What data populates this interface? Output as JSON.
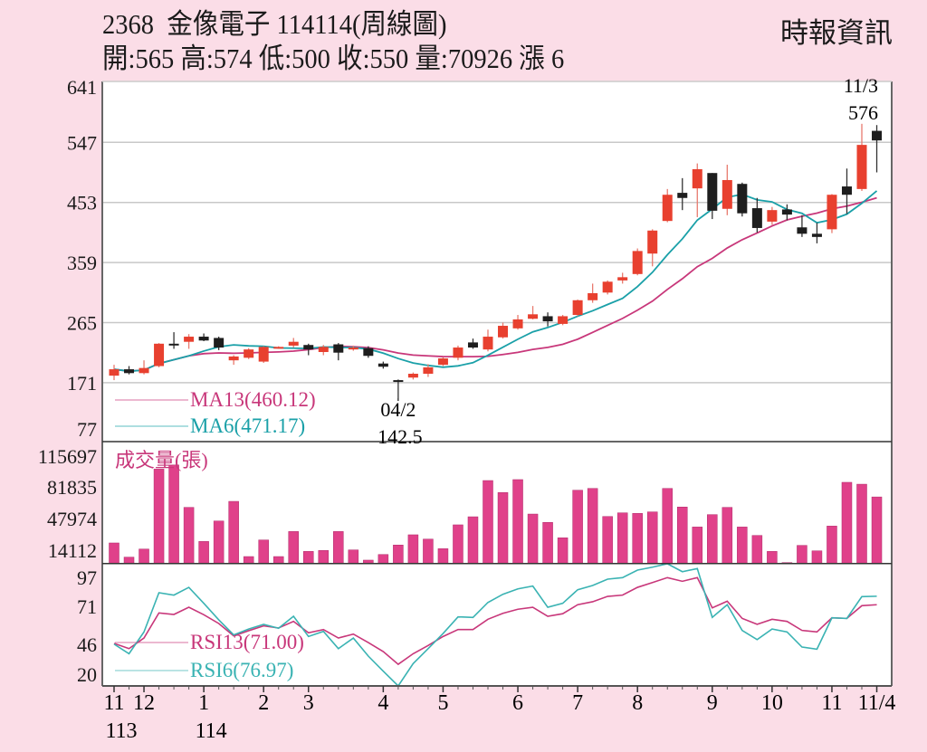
{
  "header": {
    "title": "2368  金像電子 114114(周線圖)",
    "quote": "開:565 高:574 低:500 收:550 量:70926 漲 6",
    "source": "時報資訊"
  },
  "colors": {
    "background": "#fbdde7",
    "up_candle": "#e8402f",
    "down_candle": "#1e1e1e",
    "volume": "#e0418a",
    "ma13": "#c8377a",
    "ma6": "#1aa0a8",
    "rsi13": "#c8377a",
    "rsi6": "#3ab3b3"
  },
  "chart_data": [
    {
      "type": "candlestick",
      "title": "",
      "y_ticks": [
        "641",
        "547",
        "453",
        "359",
        "265",
        "171",
        "77"
      ],
      "ylim": [
        77,
        641
      ],
      "grid": true,
      "legend": [
        {
          "label": "MA13(460.12)",
          "series": "ma13"
        },
        {
          "label": "MA6(471.17)",
          "series": "ma6"
        }
      ],
      "annotations": [
        {
          "label_date": "11/3",
          "label_value": "576",
          "index": 50
        },
        {
          "label_date": "04/2",
          "label_value": "142.5",
          "index": 19
        }
      ],
      "ohlc": [
        [
          182,
          199,
          175,
          192
        ],
        [
          192,
          197,
          184,
          186
        ],
        [
          186,
          206,
          184,
          194
        ],
        [
          197,
          233,
          195,
          232
        ],
        [
          232,
          250,
          224,
          231
        ],
        [
          235,
          247,
          224,
          243
        ],
        [
          243,
          248,
          236,
          237
        ],
        [
          241,
          243,
          222,
          226
        ],
        [
          206,
          214,
          199,
          212
        ],
        [
          210,
          225,
          208,
          223
        ],
        [
          204,
          228,
          202,
          227
        ],
        [
          226,
          228,
          224,
          227
        ],
        [
          229,
          241,
          226,
          235
        ],
        [
          230,
          232,
          214,
          223
        ],
        [
          219,
          230,
          214,
          227
        ],
        [
          231,
          233,
          206,
          218
        ],
        [
          223,
          229,
          221,
          226
        ],
        [
          225,
          228,
          210,
          213
        ],
        [
          201,
          204,
          193,
          196
        ],
        [
          175,
          176,
          142.5,
          173
        ],
        [
          179,
          187,
          176,
          185
        ],
        [
          185,
          200,
          180,
          195
        ],
        [
          199,
          211,
          197,
          209
        ],
        [
          210,
          229,
          206,
          226
        ],
        [
          234,
          240,
          224,
          226
        ],
        [
          223,
          254,
          220,
          243
        ],
        [
          242,
          265,
          240,
          260
        ],
        [
          256,
          277,
          254,
          270
        ],
        [
          271,
          291,
          270,
          278
        ],
        [
          275,
          281,
          259,
          267
        ],
        [
          263,
          277,
          261,
          275
        ],
        [
          277,
          301,
          275,
          300
        ],
        [
          300,
          326,
          296,
          311
        ],
        [
          312,
          331,
          309,
          329
        ],
        [
          331,
          343,
          326,
          336
        ],
        [
          341,
          381,
          339,
          377
        ],
        [
          373,
          411,
          353,
          409
        ],
        [
          424,
          474,
          422,
          465
        ],
        [
          468,
          491,
          441,
          460
        ],
        [
          475,
          514,
          430,
          505
        ],
        [
          499,
          499,
          427,
          440
        ],
        [
          443,
          512,
          433,
          488
        ],
        [
          482,
          484,
          431,
          436
        ],
        [
          444,
          460,
          406,
          413
        ],
        [
          423,
          446,
          418,
          441
        ],
        [
          442,
          450,
          425,
          434
        ],
        [
          414,
          433,
          399,
          404
        ],
        [
          404,
          421,
          389,
          399
        ],
        [
          411,
          466,
          405,
          465
        ],
        [
          478,
          506,
          435,
          465
        ],
        [
          474,
          576,
          471,
          543
        ],
        [
          565,
          574,
          500,
          550
        ]
      ]
    },
    {
      "type": "bar",
      "title": "成交量(張)",
      "y_ticks": [
        "115697",
        "81835",
        "47974",
        "14112"
      ],
      "ylim": [
        0,
        115697
      ],
      "values": [
        21900,
        6800,
        15400,
        100600,
        105000,
        59800,
        23500,
        45300,
        66200,
        7400,
        25100,
        7400,
        34100,
        12900,
        13900,
        34100,
        14500,
        3600,
        9600,
        19700,
        30600,
        26000,
        15800,
        41200,
        49800,
        88400,
        75600,
        89400,
        52700,
        43800,
        27400,
        78100,
        80000,
        50100,
        54000,
        53400,
        55000,
        80000,
        60200,
        38900,
        52100,
        59800,
        38900,
        29900,
        12900,
        1000,
        19300,
        13500,
        39900,
        86500,
        84500,
        70926
      ]
    },
    {
      "type": "line",
      "y_ticks": [
        "97",
        "71",
        "46",
        "20"
      ],
      "ylim": [
        0,
        100
      ],
      "series": [
        {
          "name": "RSI13(71.00)",
          "values": [
            43.6,
            39.9,
            47.4,
            65.2,
            64.1,
            69.2,
            63.9,
            57.7,
            48.9,
            52.6,
            56,
            54.5,
            59.2,
            51.1,
            53.4,
            47.4,
            50.2,
            44.2,
            37.8,
            28.8,
            36.3,
            42.1,
            48.5,
            53.4,
            53.4,
            60.7,
            64.9,
            67.8,
            69.2,
            62.8,
            64.6,
            71,
            73.1,
            76.9,
            77.8,
            83.3,
            86.7,
            90.2,
            87.6,
            90.2,
            68.8,
            73.5,
            61.3,
            57.1,
            60.7,
            59.2,
            52.8,
            51.7,
            61.7,
            61.3,
            70.3,
            71.0
          ]
        },
        {
          "name": "RSI6(76.97)",
          "values": [
            43.1,
            36.3,
            51.7,
            79.5,
            77.8,
            83.3,
            72,
            60.3,
            49.6,
            53.8,
            57.1,
            54.3,
            62.8,
            48.5,
            52.1,
            39.9,
            47.4,
            34.6,
            23.9,
            13.3,
            29.3,
            39.9,
            50.6,
            62.4,
            62,
            72.6,
            78.4,
            82.2,
            84.2,
            69.2,
            72,
            81.6,
            84.6,
            89.1,
            90.2,
            95.5,
            97.6,
            100,
            94.4,
            96.6,
            62,
            71,
            52.8,
            46.3,
            53.8,
            51.7,
            41,
            39.5,
            61.7,
            61.3,
            76.7,
            77.0
          ]
        }
      ]
    }
  ],
  "x_axis": {
    "ticks": [
      {
        "label": "11",
        "sub": "113",
        "index": 0
      },
      {
        "label": "12",
        "sub": "",
        "index": 2
      },
      {
        "label": "1",
        "sub": "114",
        "index": 6
      },
      {
        "label": "2",
        "sub": "",
        "index": 10
      },
      {
        "label": "3",
        "sub": "",
        "index": 13
      },
      {
        "label": "4",
        "sub": "",
        "index": 18
      },
      {
        "label": "5",
        "sub": "",
        "index": 22
      },
      {
        "label": "6",
        "sub": "",
        "index": 27
      },
      {
        "label": "7",
        "sub": "",
        "index": 31
      },
      {
        "label": "8",
        "sub": "",
        "index": 35
      },
      {
        "label": "9",
        "sub": "",
        "index": 40
      },
      {
        "label": "10",
        "sub": "",
        "index": 44
      },
      {
        "label": "11",
        "sub": "",
        "index": 48
      },
      {
        "label": "11/4",
        "sub": "",
        "index": 51
      }
    ]
  }
}
